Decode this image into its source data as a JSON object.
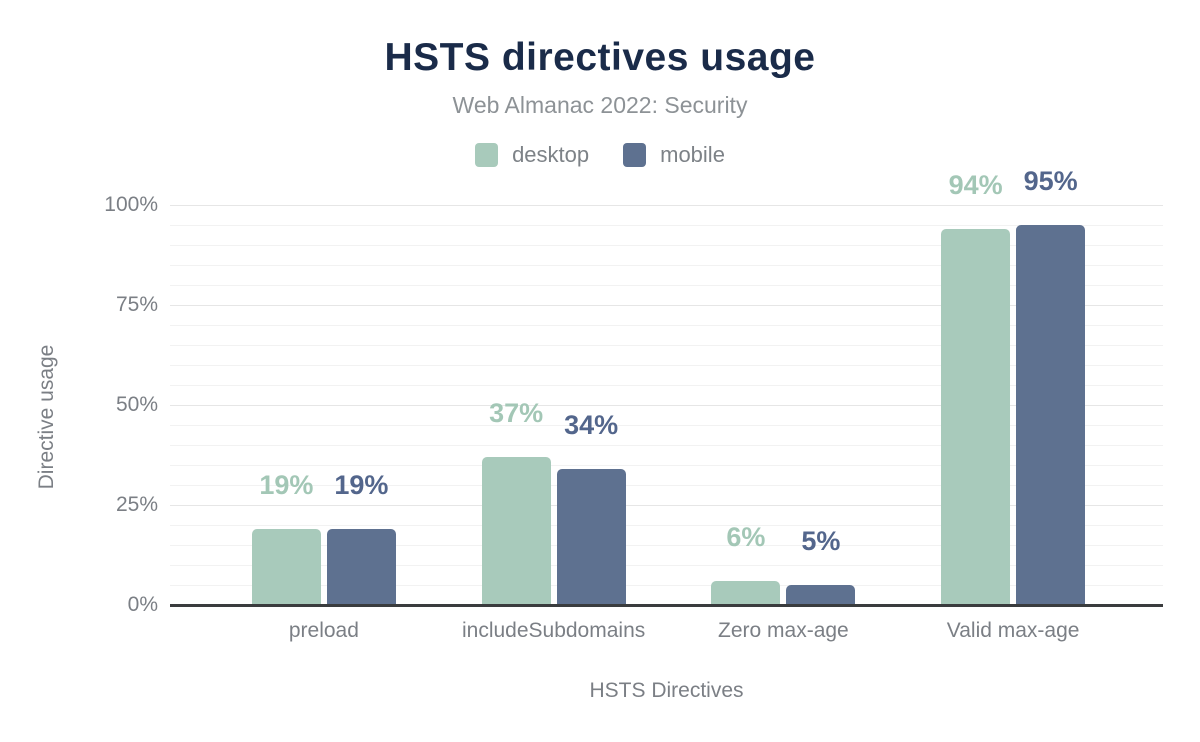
{
  "chart_data": {
    "type": "bar",
    "title": "HSTS directives usage",
    "subtitle": "Web Almanac 2022: Security",
    "xlabel": "HSTS Directives",
    "ylabel": "Directive usage",
    "categories": [
      "preload",
      "includeSubdomains",
      "Zero max-age",
      "Valid max-age"
    ],
    "series": [
      {
        "name": "desktop",
        "values": [
          19,
          37,
          6,
          94
        ],
        "bar_color": "#a8cabb",
        "label_color": "#a3c7b6"
      },
      {
        "name": "mobile",
        "values": [
          19,
          34,
          5,
          95
        ],
        "bar_color": "#5e7190",
        "label_color": "#53668c"
      }
    ],
    "value_suffix": "%",
    "ylim": [
      0,
      100
    ],
    "y_ticks": [
      {
        "label": "0%",
        "value": 0
      },
      {
        "label": "25%",
        "value": 25
      },
      {
        "label": "50%",
        "value": 50
      },
      {
        "label": "75%",
        "value": 75
      },
      {
        "label": "100%",
        "value": 100
      }
    ],
    "grid": {
      "minor_step": 5,
      "major_step": 25,
      "on": true
    },
    "legend_position": "top",
    "colors": {
      "title": "#1a2b49",
      "subtitle": "#8d9296",
      "axis_text": "#7b7f85",
      "axis_line": "#3a3c3e",
      "grid_minor": "#f2f2f2",
      "grid_major": "#e6e6e6",
      "background": "#ffffff"
    }
  }
}
